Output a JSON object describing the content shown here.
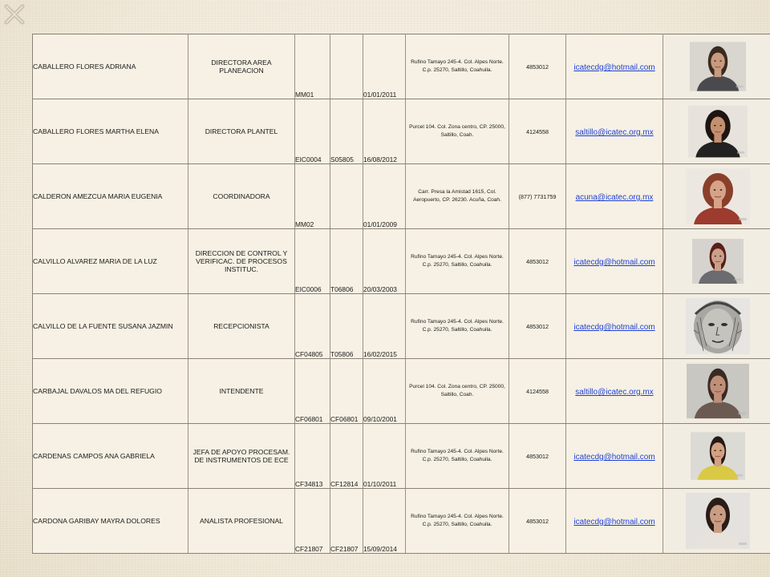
{
  "rows": [
    {
      "name": "CABALLERO FLORES ADRIANA",
      "role": "DIRECTORA AREA PLANEACION",
      "code1": "MM01",
      "code2": "",
      "date": "01/01/2011",
      "address": "Rufino Tamayo 245-4. Col. Alpes Norte. C.p. 25270, Saltillo, Coahuila.",
      "phone": "4853012",
      "email": "icatecdg@hotmail.com"
    },
    {
      "name": "CABALLERO FLORES MARTHA ELENA",
      "role": "DIRECTORA PLANTEL",
      "code1": "EIC0004",
      "code2": "S05805",
      "date": "16/08/2012",
      "address": "Purcel 104. Col. Zona centro, CP. 25000, Saltillo, Coah.",
      "phone": "4124558",
      "email": "saltillo@icatec.org.mx"
    },
    {
      "name": "CALDERON AMEZCUA MARIA EUGENIA",
      "role": "COORDINADORA",
      "code1": "MM02",
      "code2": "",
      "date": "01/01/2009",
      "address": "Carr. Presa la Amistad 1615, Col. Aeropuerto, CP. 26230. Acuña, Coah.",
      "phone": "(877) 7731759",
      "email": "acuna@icatec.org.mx"
    },
    {
      "name": "CALVILLO ALVAREZ MARIA DE LA LUZ",
      "role": "DIRECCION DE CONTROL Y VERIFICAC. DE PROCESOS INSTITUC.",
      "code1": "EIC0006",
      "code2": "T06806",
      "date": "20/03/2003",
      "address": "Rufino Tamayo 245-4. Col. Alpes Norte. C.p. 25270, Saltillo, Coahuila.",
      "phone": "4853012",
      "email": "icatecdg@hotmail.com"
    },
    {
      "name": "CALVILLO DE LA FUENTE SUSANA JAZMIN",
      "role": "RECEPCIONISTA",
      "code1": "CF04805",
      "code2": "T05806",
      "date": "16/02/2015",
      "address": "Rufino Tamayo 245-4. Col. Alpes Norte. C.p. 25270, Saltillo, Coahuila.",
      "phone": "4853012",
      "email": "icatecdg@hotmail.com"
    },
    {
      "name": "CARBAJAL DAVALOS MA DEL REFUGIO",
      "role": "INTENDENTE",
      "code1": "CF06801",
      "code2": "CF06801",
      "date": "09/10/2001",
      "address": "Purcel 104. Col. Zona centro, CP. 25000, Saltillo, Coah.",
      "phone": "4124558",
      "email": "saltillo@icatec.org.mx"
    },
    {
      "name": "CARDENAS CAMPOS ANA GABRIELA",
      "role": "JEFA DE APOYO PROCESAM. DE INSTRUMENTOS DE ECE",
      "code1": "CF34813",
      "code2": "CF12814",
      "date": "01/10/2011",
      "address": "Rufino Tamayo 245-4. Col. Alpes Norte. C.p. 25270, Saltillo, Coahuila.",
      "phone": "4853012",
      "email": "icatecdg@hotmail.com"
    },
    {
      "name": "CARDONA GARIBAY MAYRA DOLORES",
      "role": "ANALISTA PROFESIONAL",
      "code1": "CF21807",
      "code2": "CF21807",
      "date": "15/09/2014",
      "address": "Rufino Tamayo 245-4. Col. Alpes Norte. C.p. 25270, Saltillo, Coahuila.",
      "phone": "4853012",
      "email": "icatecdg@hotmail.com"
    }
  ],
  "colors": {
    "link": "#1f3fd6",
    "border": "#8a8274",
    "background": "#f4efe2"
  },
  "icons": {
    "corner": "x-mark-decoration",
    "photo": "person-portrait-photo",
    "sketch": "sketched-face-drawing"
  }
}
